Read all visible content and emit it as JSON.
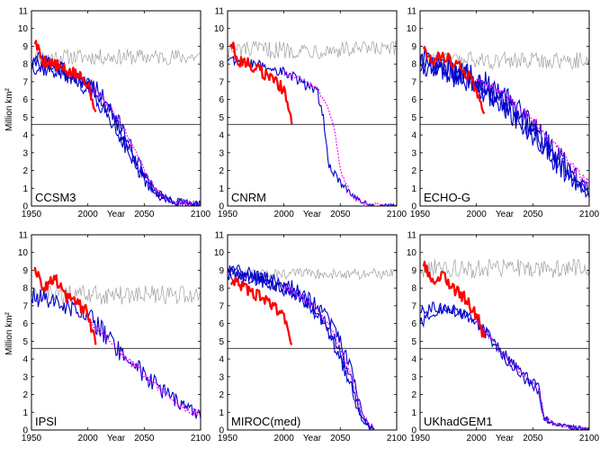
{
  "figure": {
    "ylabel": "Million km²",
    "xlabel": "Year"
  },
  "colors": {
    "observed": "#ff0000",
    "model_runs": "#0000cc",
    "ensemble_mean": "#ff00ff",
    "control": "#a0a0a0",
    "threshold": "#000000"
  },
  "chart_data": [
    {
      "type": "line",
      "panel": "CCSM3",
      "title": "CCSM3",
      "xlabel": "Year",
      "ylabel": "Million km²",
      "xlim": [
        1950,
        2100
      ],
      "ylim": [
        0,
        11
      ],
      "xticks": [
        1950,
        2000,
        2050,
        2100
      ],
      "yticks": [
        0,
        1,
        2,
        3,
        4,
        5,
        6,
        7,
        8,
        9,
        10,
        11
      ],
      "threshold": 4.6,
      "control_level": 8.4,
      "control_amp": 0.45,
      "observed_x": [
        1953,
        1960,
        1970,
        1980,
        1990,
        2000,
        2007
      ],
      "observed_y": [
        9.3,
        8.2,
        8.0,
        7.6,
        7.4,
        7.0,
        5.3
      ],
      "runs_x": [
        1950,
        1970,
        1990,
        2000,
        2010,
        2020,
        2030,
        2040,
        2050,
        2060,
        2070,
        2080,
        2090,
        2100
      ],
      "runs": [
        [
          8.0,
          7.9,
          7.3,
          7.0,
          6.5,
          5.5,
          4.5,
          3.0,
          1.8,
          0.8,
          0.4,
          0.25,
          0.15,
          0.1
        ],
        [
          8.3,
          8.0,
          7.0,
          6.6,
          5.8,
          4.8,
          3.8,
          2.6,
          1.4,
          0.6,
          0.3,
          0.2,
          0.1,
          0.1
        ],
        [
          7.9,
          7.6,
          7.2,
          6.8,
          6.2,
          5.2,
          4.1,
          2.8,
          1.6,
          0.8,
          0.4,
          0.2,
          0.15,
          0.1
        ]
      ],
      "mean": [
        8.1,
        7.8,
        7.2,
        6.8,
        6.2,
        5.5,
        4.6,
        3.3,
        2.0,
        0.9,
        0.4,
        0.2,
        0.15,
        0.1
      ],
      "mean_dashed": true,
      "noise": 0.45
    },
    {
      "type": "line",
      "panel": "CNRM",
      "title": "CNRM",
      "xlabel": "Year",
      "ylabel": "Million km²",
      "xlim": [
        1950,
        2100
      ],
      "ylim": [
        0,
        11
      ],
      "xticks": [
        1950,
        2000,
        2050,
        2100
      ],
      "yticks": [
        0,
        1,
        2,
        3,
        4,
        5,
        6,
        7,
        8,
        9,
        10,
        11
      ],
      "threshold": 4.6,
      "control_level": 8.8,
      "control_amp": 0.5,
      "observed_x": [
        1953,
        1960,
        1970,
        1980,
        1990,
        2000,
        2007
      ],
      "observed_y": [
        9.3,
        8.1,
        8.0,
        7.6,
        7.2,
        6.5,
        4.6
      ],
      "runs_x": [
        1950,
        1970,
        1990,
        2000,
        2010,
        2020,
        2030,
        2035,
        2040,
        2045,
        2050,
        2060,
        2070,
        2080,
        2090,
        2100
      ],
      "runs": [
        [
          8.3,
          8.0,
          7.8,
          7.5,
          7.2,
          6.8,
          6.3,
          5.0,
          2.3,
          1.8,
          1.3,
          0.6,
          0.2,
          0.05,
          0.0,
          0.0
        ]
      ],
      "mean": [
        8.3,
        8.0,
        7.8,
        7.5,
        7.3,
        7.0,
        6.6,
        6.0,
        5.4,
        4.3,
        2.0,
        0.6,
        0.2,
        0.05,
        0.0,
        0.0
      ],
      "mean_dashed": true,
      "noise": 0.3
    },
    {
      "type": "line",
      "panel": "ECHO-G",
      "title": "ECHO-G",
      "xlabel": "Year",
      "ylabel": "Million km²",
      "xlim": [
        1950,
        2100
      ],
      "ylim": [
        0,
        11
      ],
      "xticks": [
        1950,
        2000,
        2050,
        2100
      ],
      "yticks": [
        0,
        1,
        2,
        3,
        4,
        5,
        6,
        7,
        8,
        9,
        10,
        11
      ],
      "threshold": 4.6,
      "control_level": 8.2,
      "control_amp": 0.5,
      "observed_x": [
        1953,
        1960,
        1970,
        1980,
        1990,
        2000,
        2007
      ],
      "observed_y": [
        9.0,
        8.2,
        8.6,
        8.0,
        7.6,
        6.6,
        5.2
      ],
      "runs_x": [
        1950,
        1970,
        1990,
        2000,
        2010,
        2020,
        2030,
        2040,
        2050,
        2060,
        2070,
        2080,
        2090,
        2100
      ],
      "runs": [
        [
          8.2,
          8.0,
          7.5,
          7.2,
          6.8,
          6.3,
          5.8,
          5.2,
          4.5,
          3.8,
          3.0,
          2.3,
          1.6,
          1.0
        ],
        [
          8.0,
          7.8,
          7.3,
          7.0,
          6.6,
          6.0,
          5.5,
          4.9,
          4.2,
          3.5,
          2.8,
          2.0,
          1.3,
          0.8
        ],
        [
          7.8,
          7.6,
          7.1,
          6.8,
          6.4,
          5.9,
          5.3,
          4.7,
          4.0,
          3.3,
          2.5,
          1.8,
          1.2,
          0.6
        ]
      ],
      "mean": [
        8.2,
        8.0,
        7.5,
        7.2,
        6.9,
        6.4,
        5.9,
        5.4,
        4.9,
        4.1,
        3.4,
        2.6,
        1.9,
        1.2
      ],
      "mean_dashed": true,
      "noise": 0.7
    },
    {
      "type": "line",
      "panel": "IPSL",
      "title": "IPSl",
      "xlabel": "Year",
      "ylabel": "Million km²",
      "xlim": [
        1950,
        2100
      ],
      "ylim": [
        0,
        11
      ],
      "xticks": [
        1950,
        2000,
        2050,
        2100
      ],
      "yticks": [
        0,
        1,
        2,
        3,
        4,
        5,
        6,
        7,
        8,
        9,
        10,
        11
      ],
      "threshold": 4.6,
      "control_level": 7.6,
      "control_amp": 0.55,
      "observed_x": [
        1953,
        1960,
        1970,
        1980,
        1990,
        2000,
        2007
      ],
      "observed_y": [
        9.3,
        8.0,
        8.6,
        7.6,
        7.2,
        6.6,
        4.8
      ],
      "runs_x": [
        1950,
        1970,
        1990,
        2000,
        2010,
        2020,
        2030,
        2040,
        2050,
        2060,
        2070,
        2080,
        2090,
        2100
      ],
      "runs": [
        [
          7.5,
          7.3,
          6.8,
          6.4,
          5.8,
          5.0,
          4.3,
          3.8,
          3.2,
          2.6,
          2.0,
          1.6,
          1.2,
          0.8
        ]
      ],
      "mean": [
        7.3,
        7.0,
        6.6,
        6.2,
        5.6,
        5.0,
        4.3,
        3.7,
        3.1,
        2.5,
        2.0,
        1.5,
        1.1,
        0.9
      ],
      "mean_dashed": true,
      "noise": 0.55
    },
    {
      "type": "line",
      "panel": "MIROC(med)",
      "title": "MIROC(med)",
      "xlabel": "Year",
      "ylabel": "Million km²",
      "xlim": [
        1950,
        2100
      ],
      "ylim": [
        0,
        11
      ],
      "xticks": [
        1950,
        2000,
        2050,
        2100
      ],
      "yticks": [
        0,
        1,
        2,
        3,
        4,
        5,
        6,
        7,
        8,
        9,
        10,
        11
      ],
      "threshold": 4.6,
      "control_level": 8.8,
      "control_amp": 0.3,
      "observed_x": [
        1953,
        1960,
        1970,
        1980,
        1990,
        2000,
        2007
      ],
      "observed_y": [
        8.3,
        8.2,
        7.7,
        7.5,
        7.0,
        6.3,
        4.8
      ],
      "runs_x": [
        1950,
        1970,
        1990,
        2000,
        2010,
        2020,
        2030,
        2040,
        2050,
        2060,
        2065,
        2070,
        2075,
        2080
      ],
      "runs": [
        [
          9.2,
          8.8,
          8.5,
          8.3,
          8.0,
          7.5,
          7.0,
          6.2,
          5.0,
          3.5,
          2.0,
          0.8,
          0.3,
          0.1
        ],
        [
          8.9,
          8.7,
          8.3,
          8.0,
          7.7,
          7.2,
          6.6,
          5.8,
          4.4,
          2.8,
          1.5,
          0.6,
          0.2,
          0.1
        ],
        [
          8.7,
          8.5,
          8.2,
          7.9,
          7.6,
          7.1,
          6.4,
          5.4,
          4.0,
          2.4,
          1.2,
          0.4,
          0.1,
          0.0
        ]
      ],
      "mean": [
        8.9,
        8.7,
        8.4,
        8.1,
        7.8,
        7.3,
        6.7,
        5.9,
        4.6,
        3.0,
        1.8,
        0.9,
        0.4,
        0.1
      ],
      "mean_dashed": true,
      "noise": 0.35
    },
    {
      "type": "line",
      "panel": "UKhadGEM1",
      "title": "UKhadGEM1",
      "xlabel": "Year",
      "ylabel": "Million km²",
      "xlim": [
        1950,
        2100
      ],
      "ylim": [
        0,
        11
      ],
      "xticks": [
        1950,
        2000,
        2050,
        2100
      ],
      "yticks": [
        0,
        1,
        2,
        3,
        4,
        5,
        6,
        7,
        8,
        9,
        10,
        11
      ],
      "threshold": 4.6,
      "control_level": 9.1,
      "control_amp": 0.55,
      "observed_x": [
        1953,
        1960,
        1970,
        1980,
        1990,
        2000,
        2007
      ],
      "observed_y": [
        9.3,
        8.4,
        8.7,
        8.0,
        7.4,
        6.5,
        5.2
      ],
      "runs_x": [
        1950,
        1960,
        1970,
        1990,
        2000,
        2010,
        2020,
        2030,
        2040,
        2050,
        2055,
        2060,
        2070,
        2080,
        2090,
        2100
      ],
      "runs": [
        [
          6.0,
          6.5,
          6.8,
          6.5,
          6.0,
          5.3,
          4.5,
          3.7,
          3.0,
          2.5,
          2.2,
          0.6,
          0.3,
          0.2,
          0.1,
          0.05
        ],
        [
          6.6,
          6.9,
          6.9,
          6.6,
          6.2,
          5.4,
          4.6,
          3.9,
          3.2,
          2.7,
          2.4,
          0.7,
          0.3,
          0.2,
          0.1,
          0.05
        ]
      ],
      "mean": [
        6.3,
        6.7,
        6.8,
        6.5,
        6.1,
        5.4,
        4.6,
        3.9,
        3.2,
        2.6,
        2.3,
        0.7,
        0.3,
        0.2,
        0.1,
        0.05
      ],
      "mean_dashed": true,
      "noise": 0.3
    }
  ]
}
